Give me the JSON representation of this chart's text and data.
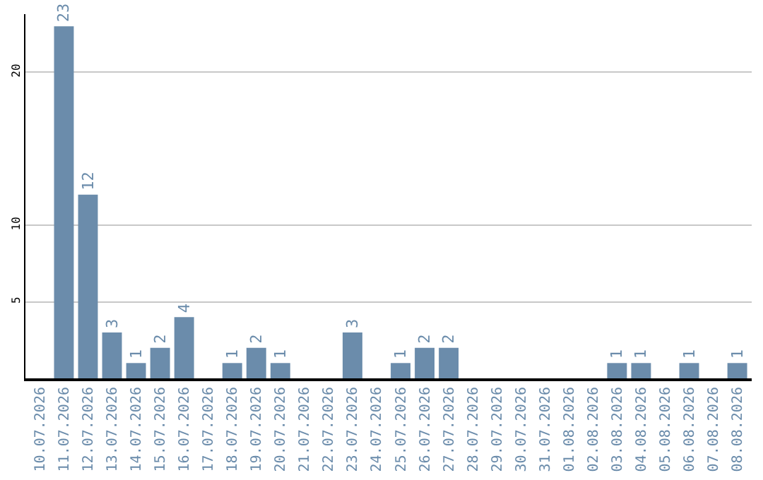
{
  "chart_data": {
    "type": "bar",
    "categories": [
      "10.07.2026",
      "11.07.2026",
      "12.07.2026",
      "13.07.2026",
      "14.07.2026",
      "15.07.2026",
      "16.07.2026",
      "17.07.2026",
      "18.07.2026",
      "19.07.2026",
      "20.07.2026",
      "21.07.2026",
      "22.07.2026",
      "23.07.2026",
      "24.07.2026",
      "25.07.2026",
      "26.07.2026",
      "27.07.2026",
      "28.07.2026",
      "29.07.2026",
      "30.07.2026",
      "31.07.2026",
      "01.08.2026",
      "02.08.2026",
      "03.08.2026",
      "04.08.2026",
      "05.08.2026",
      "06.08.2026",
      "07.08.2026",
      "08.08.2026"
    ],
    "values": [
      0,
      23,
      12,
      3,
      1,
      2,
      4,
      0,
      1,
      2,
      1,
      0,
      0,
      3,
      0,
      1,
      2,
      2,
      0,
      0,
      0,
      0,
      0,
      0,
      1,
      1,
      0,
      1,
      0,
      1
    ],
    "value_labels": [
      null,
      "23",
      "12",
      "3",
      "1",
      "2",
      "4",
      null,
      "1",
      "2",
      "1",
      null,
      null,
      "3",
      null,
      "1",
      "2",
      "2",
      null,
      null,
      null,
      null,
      null,
      null,
      "1",
      "1",
      null,
      "1",
      null,
      "1"
    ],
    "color": "#6b8cab",
    "ylim": [
      0,
      23.8
    ],
    "yticks": [
      5,
      10,
      20
    ],
    "grid": "y"
  }
}
